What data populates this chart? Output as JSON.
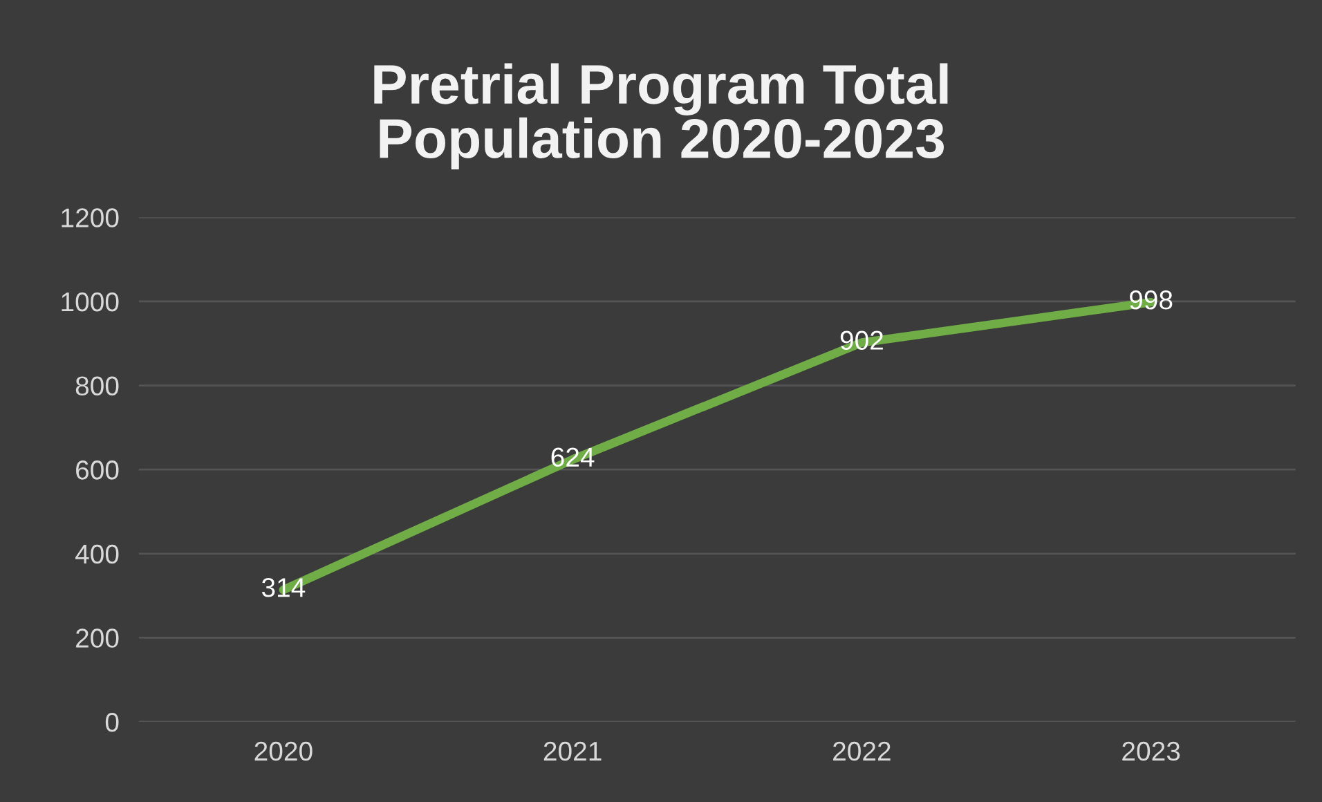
{
  "chart_data": {
    "type": "line",
    "title": "Pretrial Program Total Population 2020-2023",
    "categories": [
      "2020",
      "2021",
      "2022",
      "2023"
    ],
    "series": [
      {
        "color": "#70ad47",
        "values": [
          314,
          624,
          902,
          998
        ]
      }
    ],
    "ylim": [
      0,
      1200
    ],
    "yticks": [
      0,
      200,
      400,
      600,
      800,
      1000,
      1200
    ],
    "grid": "y",
    "data_labels": true,
    "marker": "none",
    "line_style": "solid"
  }
}
